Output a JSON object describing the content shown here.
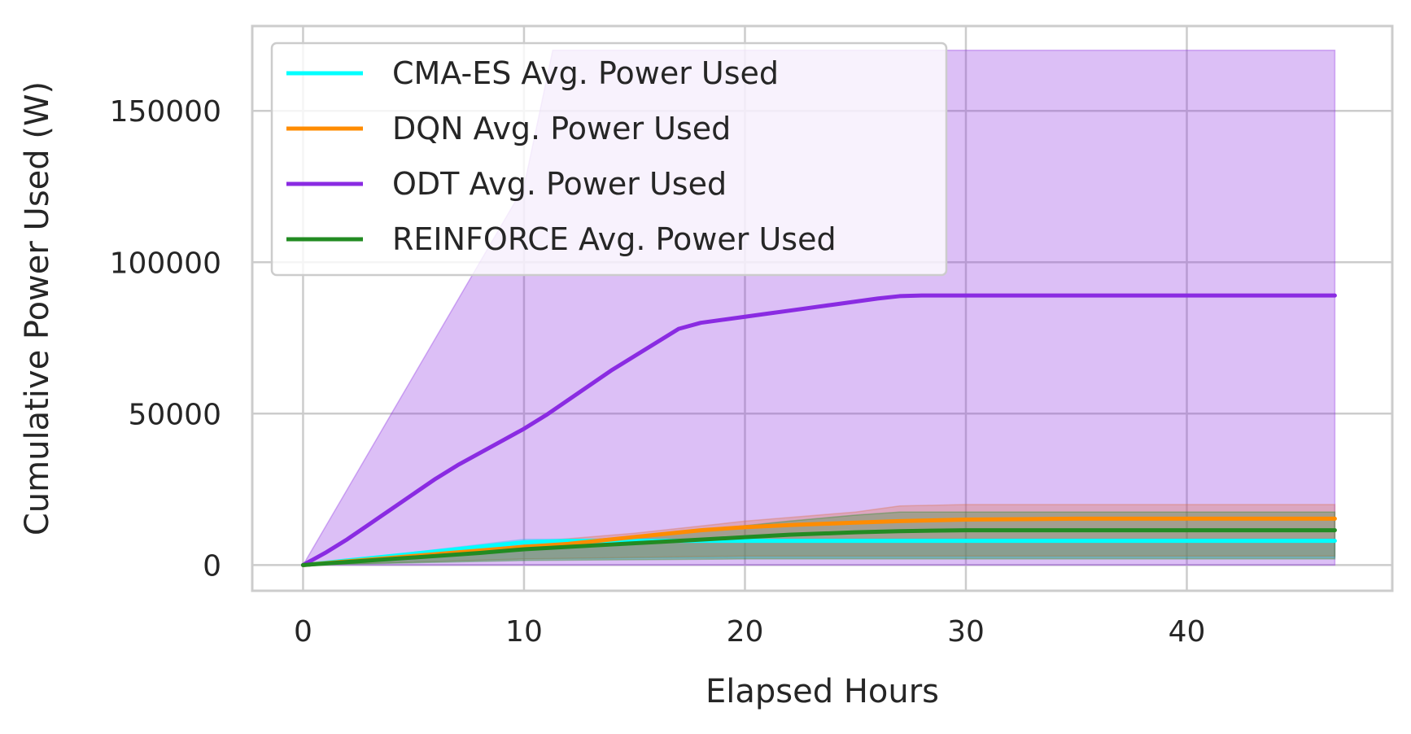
{
  "chart_data": {
    "type": "line",
    "xlabel": "Elapsed Hours",
    "ylabel": "Cumulative Power Used (W)",
    "xlim": [
      -2.3,
      49.3
    ],
    "ylim": [
      -8500,
      178000
    ],
    "x_ticks": [
      0,
      10,
      20,
      30,
      40
    ],
    "y_ticks": [
      0,
      50000,
      100000,
      150000
    ],
    "x_tick_labels": [
      "0",
      "10",
      "20",
      "30",
      "40"
    ],
    "y_tick_labels": [
      "0",
      "50000",
      "100000",
      "150000"
    ],
    "grid": true,
    "legend_position": "upper-left",
    "series": [
      {
        "name": "CMA-ES Avg. Power Used",
        "color": "#00FFFF",
        "points": [
          [
            0,
            0
          ],
          [
            2,
            1500
          ],
          [
            4,
            3000
          ],
          [
            6,
            4500
          ],
          [
            8,
            6000
          ],
          [
            10,
            7500
          ],
          [
            12,
            8000
          ],
          [
            15,
            8000
          ],
          [
            20,
            8000
          ],
          [
            30,
            8000
          ],
          [
            40,
            8000
          ],
          [
            46.7,
            8000
          ]
        ],
        "band_upper": [
          [
            0,
            0
          ],
          [
            5,
            4200
          ],
          [
            10,
            8500
          ],
          [
            15,
            8600
          ],
          [
            20,
            8600
          ],
          [
            30,
            8600
          ],
          [
            46.7,
            8600
          ]
        ],
        "band_lower": [
          [
            0,
            0
          ],
          [
            5,
            1000
          ],
          [
            10,
            2000
          ],
          [
            20,
            2500
          ],
          [
            30,
            2500
          ],
          [
            46.7,
            2500
          ]
        ]
      },
      {
        "name": "DQN Avg. Power Used",
        "color": "#FF8C00",
        "points": [
          [
            0,
            0
          ],
          [
            2,
            1200
          ],
          [
            4,
            2400
          ],
          [
            6,
            3600
          ],
          [
            8,
            4800
          ],
          [
            10,
            6000
          ],
          [
            12,
            7000
          ],
          [
            14,
            8500
          ],
          [
            16,
            10000
          ],
          [
            18,
            11500
          ],
          [
            20,
            12500
          ],
          [
            22,
            13200
          ],
          [
            25,
            14000
          ],
          [
            27,
            14500
          ],
          [
            30,
            15000
          ],
          [
            35,
            15300
          ],
          [
            40,
            15300
          ],
          [
            46.7,
            15300
          ]
        ],
        "band_upper": [
          [
            0,
            0
          ],
          [
            5,
            3500
          ],
          [
            10,
            7500
          ],
          [
            15,
            10500
          ],
          [
            20,
            14500
          ],
          [
            25,
            17500
          ],
          [
            27,
            19500
          ],
          [
            30,
            20000
          ],
          [
            46.7,
            20000
          ]
        ],
        "band_lower": [
          [
            0,
            0
          ],
          [
            10,
            2000
          ],
          [
            20,
            3000
          ],
          [
            30,
            3000
          ],
          [
            46.7,
            3000
          ]
        ]
      },
      {
        "name": "ODT Avg. Power Used",
        "color": "#8A2BE2",
        "points": [
          [
            0,
            0
          ],
          [
            1,
            4000
          ],
          [
            2,
            8500
          ],
          [
            3,
            13500
          ],
          [
            4,
            18500
          ],
          [
            5,
            23500
          ],
          [
            6,
            28500
          ],
          [
            7,
            33000
          ],
          [
            8,
            37000
          ],
          [
            9,
            41000
          ],
          [
            10,
            45000
          ],
          [
            11,
            49500
          ],
          [
            12,
            54500
          ],
          [
            13,
            59500
          ],
          [
            14,
            64500
          ],
          [
            15,
            69000
          ],
          [
            16,
            73500
          ],
          [
            17,
            78000
          ],
          [
            18,
            80000
          ],
          [
            19,
            81000
          ],
          [
            20,
            82000
          ],
          [
            21,
            83000
          ],
          [
            22,
            84000
          ],
          [
            23,
            85000
          ],
          [
            24,
            86000
          ],
          [
            25,
            87000
          ],
          [
            26,
            88000
          ],
          [
            27,
            88800
          ],
          [
            28,
            89000
          ],
          [
            30,
            89000
          ],
          [
            35,
            89000
          ],
          [
            40,
            89000
          ],
          [
            46.7,
            89000
          ]
        ],
        "band_upper": [
          [
            0,
            0
          ],
          [
            2,
            25000
          ],
          [
            4,
            50000
          ],
          [
            6,
            75000
          ],
          [
            8,
            100000
          ],
          [
            10,
            125000
          ],
          [
            11.3,
            170000
          ],
          [
            46.7,
            170000
          ]
        ],
        "band_lower": [
          [
            0,
            0
          ],
          [
            46.7,
            0
          ]
        ]
      },
      {
        "name": "REINFORCE Avg. Power Used",
        "color": "#228B22",
        "points": [
          [
            0,
            0
          ],
          [
            2,
            1000
          ],
          [
            4,
            2000
          ],
          [
            6,
            3000
          ],
          [
            8,
            4000
          ],
          [
            10,
            5200
          ],
          [
            12,
            6000
          ],
          [
            14,
            6800
          ],
          [
            16,
            7600
          ],
          [
            18,
            8400
          ],
          [
            20,
            9200
          ],
          [
            22,
            10000
          ],
          [
            25,
            10800
          ],
          [
            27,
            11200
          ],
          [
            30,
            11500
          ],
          [
            35,
            11500
          ],
          [
            40,
            11500
          ],
          [
            46.7,
            11500
          ]
        ],
        "band_upper": [
          [
            0,
            0
          ],
          [
            5,
            3200
          ],
          [
            10,
            6500
          ],
          [
            15,
            9500
          ],
          [
            20,
            13000
          ],
          [
            22,
            14500
          ],
          [
            25,
            16500
          ],
          [
            27,
            17500
          ],
          [
            30,
            17500
          ],
          [
            46.7,
            17500
          ]
        ],
        "band_lower": [
          [
            0,
            0
          ],
          [
            10,
            1500
          ],
          [
            20,
            2000
          ],
          [
            30,
            2000
          ],
          [
            46.7,
            2000
          ]
        ]
      }
    ]
  }
}
